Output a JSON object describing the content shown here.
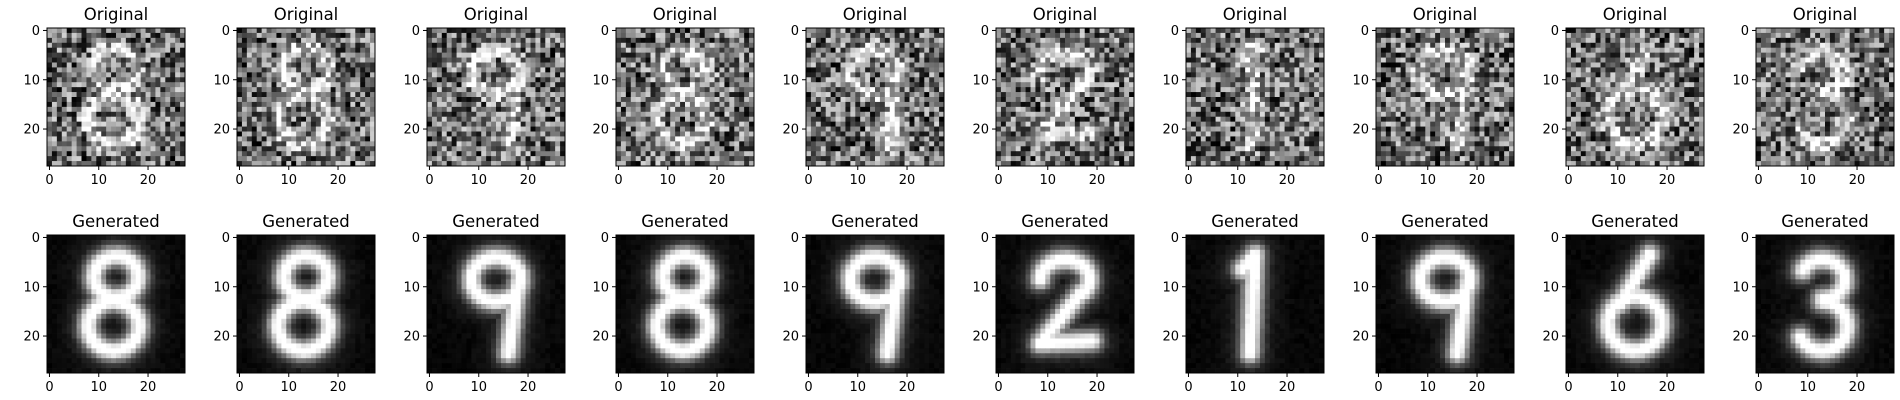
{
  "figure": {
    "rows": [
      {
        "row_name": "original",
        "panels": [
          {
            "title": "Original",
            "digit": "8"
          },
          {
            "title": "Original",
            "digit": "8"
          },
          {
            "title": "Original",
            "digit": "9"
          },
          {
            "title": "Original",
            "digit": "8"
          },
          {
            "title": "Original",
            "digit": "9"
          },
          {
            "title": "Original",
            "digit": "2"
          },
          {
            "title": "Original",
            "digit": "1"
          },
          {
            "title": "Original",
            "digit": "9"
          },
          {
            "title": "Original",
            "digit": "6"
          },
          {
            "title": "Original",
            "digit": "3"
          }
        ]
      },
      {
        "row_name": "generated",
        "panels": [
          {
            "title": "Generated",
            "digit": "8"
          },
          {
            "title": "Generated",
            "digit": "8"
          },
          {
            "title": "Generated",
            "digit": "9"
          },
          {
            "title": "Generated",
            "digit": "8"
          },
          {
            "title": "Generated",
            "digit": "9"
          },
          {
            "title": "Generated",
            "digit": "2"
          },
          {
            "title": "Generated",
            "digit": "1"
          },
          {
            "title": "Generated",
            "digit": "9"
          },
          {
            "title": "Generated",
            "digit": "6"
          },
          {
            "title": "Generated",
            "digit": "3"
          }
        ]
      }
    ],
    "x_ticks": [
      "0",
      "10",
      "20"
    ],
    "y_ticks": [
      "0",
      "10",
      "20"
    ],
    "image_size": 28,
    "colormap": "gray"
  }
}
